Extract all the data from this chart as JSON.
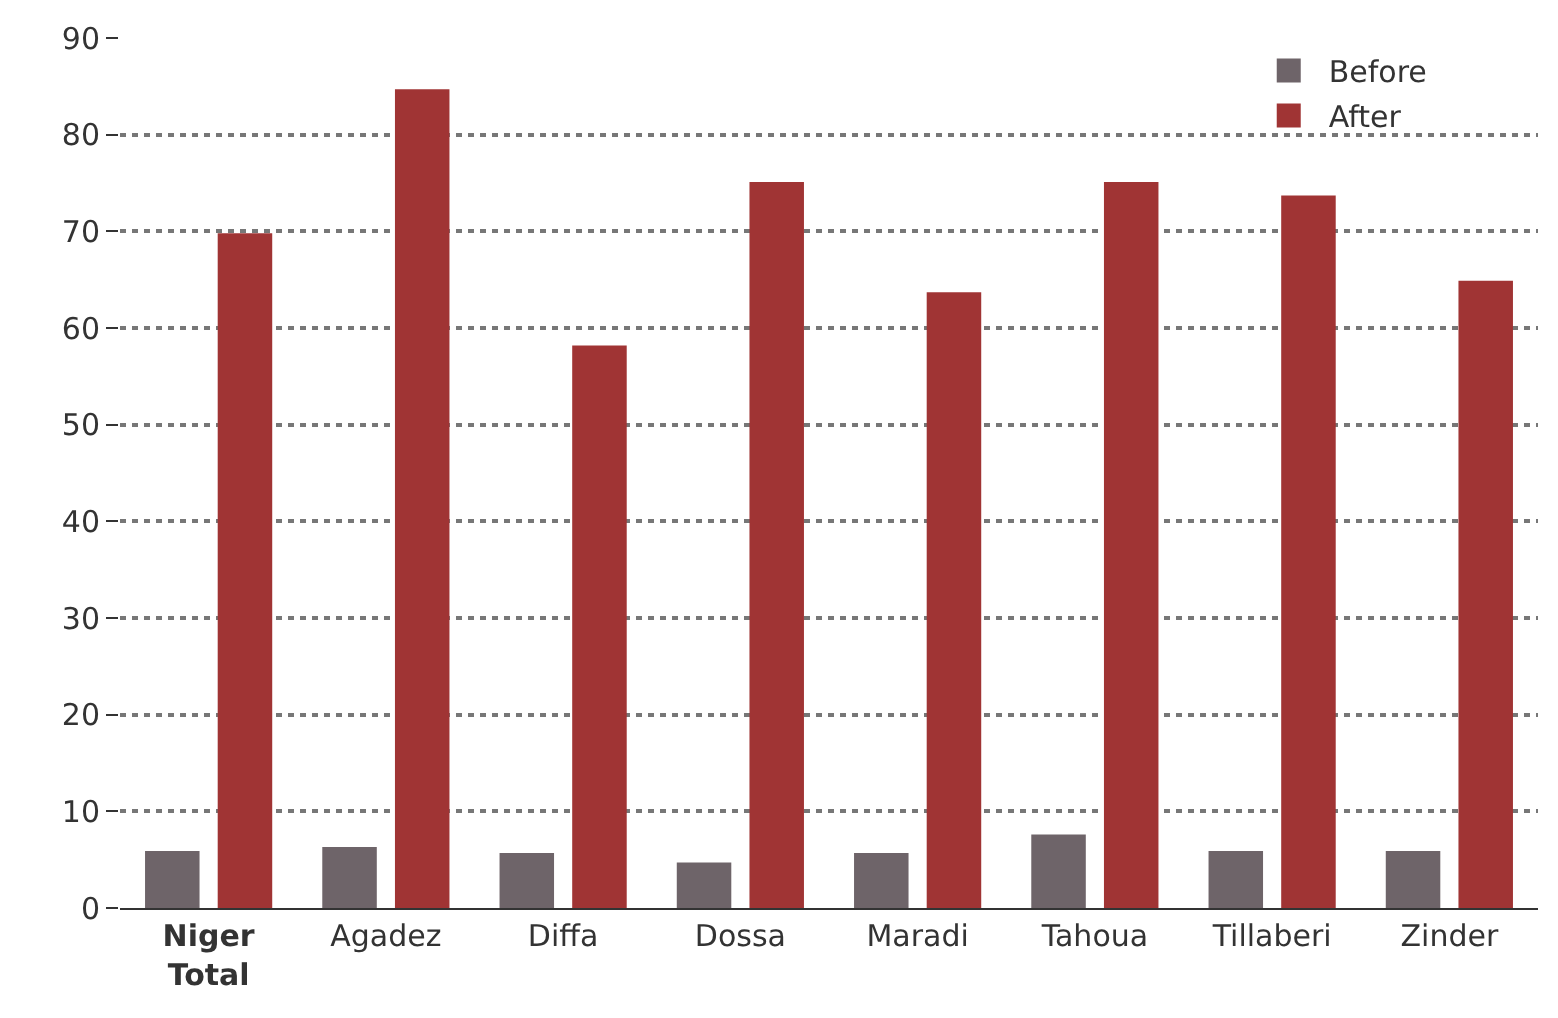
{
  "chart_data": {
    "type": "bar",
    "categories": [
      "Niger Total",
      "Agadez",
      "Diffa",
      "Dossa",
      "Maradi",
      "Tahoua",
      "Tillaberi",
      "Zinder"
    ],
    "series": [
      {
        "name": "Before",
        "color": "#6e6469",
        "values": [
          5.9,
          6.3,
          5.7,
          4.7,
          5.7,
          7.6,
          5.9,
          5.9
        ]
      },
      {
        "name": "After",
        "color": "#a03434",
        "values": [
          69.8,
          84.7,
          58.2,
          75.1,
          63.7,
          75.1,
          73.7,
          64.9
        ]
      }
    ],
    "ylim": [
      0,
      90
    ],
    "yticks": [
      0,
      10,
      20,
      30,
      40,
      50,
      60,
      70,
      80,
      90
    ],
    "grid": "y",
    "legend": "top right"
  }
}
